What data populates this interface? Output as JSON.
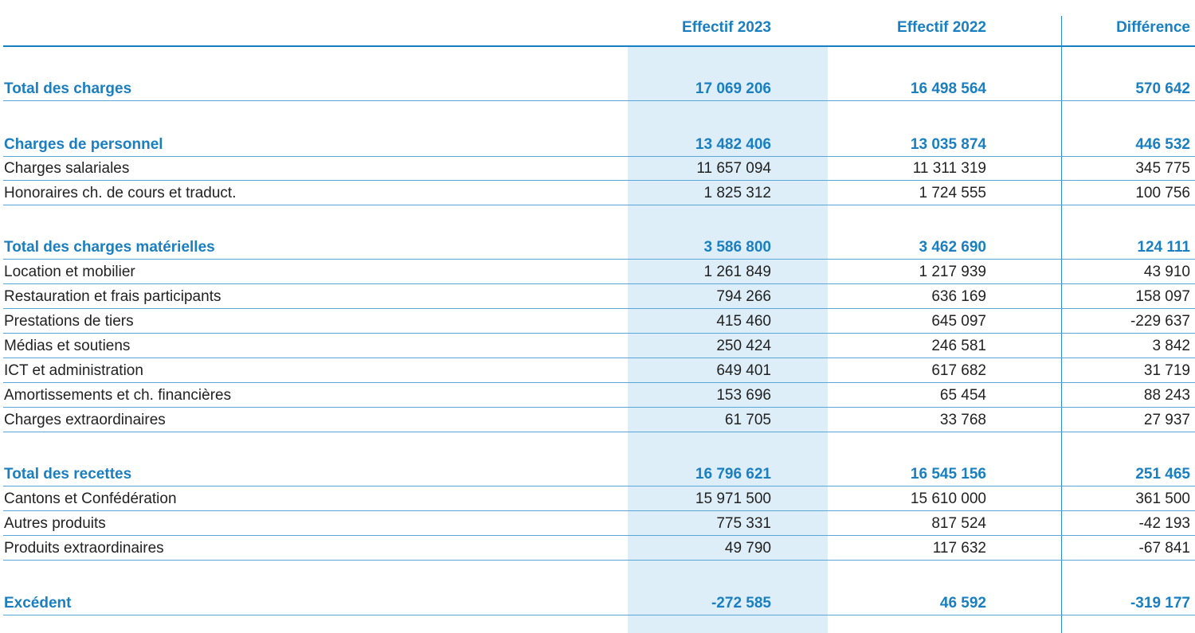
{
  "columns": {
    "col_2023": "Effectif  2023",
    "col_2022": "Effectif  2022",
    "col_diff": "Différence"
  },
  "rows": [
    {
      "label": "Total des charges",
      "v2023": "17 069 206",
      "v2022": "16 498 564",
      "diff": "570 642",
      "bold": true
    },
    {
      "label": "Charges de personnel",
      "v2023": "13 482 406",
      "v2022": "13 035 874",
      "diff": "446 532",
      "bold": true
    },
    {
      "label": "Charges salariales",
      "v2023": "11 657 094",
      "v2022": "11 311 319",
      "diff": "345 775",
      "bold": false
    },
    {
      "label": "Honoraires ch. de cours et traduct.",
      "v2023": "1 825 312",
      "v2022": "1 724 555",
      "diff": "100 756",
      "bold": false
    },
    {
      "label": "Total des charges matérielles",
      "v2023": "3 586 800",
      "v2022": "3 462 690",
      "diff": "124 111",
      "bold": true
    },
    {
      "label": "Location et mobilier",
      "v2023": "1 261 849",
      "v2022": "1 217 939",
      "diff": "43 910",
      "bold": false
    },
    {
      "label": "Restauration et frais participants",
      "v2023": "794 266",
      "v2022": "636 169",
      "diff": "158 097",
      "bold": false
    },
    {
      "label": "Prestations de tiers",
      "v2023": "415 460",
      "v2022": "645 097",
      "diff": "-229 637",
      "bold": false
    },
    {
      "label": "Médias et soutiens",
      "v2023": "250 424",
      "v2022": "246 581",
      "diff": "3 842",
      "bold": false
    },
    {
      "label": "ICT et administration",
      "v2023": "649 401",
      "v2022": "617 682",
      "diff": "31 719",
      "bold": false
    },
    {
      "label": "Amortissements et ch. financières",
      "v2023": "153 696",
      "v2022": "65 454",
      "diff": "88 243",
      "bold": false
    },
    {
      "label": "Charges extraordinaires",
      "v2023": "61 705",
      "v2022": "33 768",
      "diff": "27 937",
      "bold": false
    },
    {
      "label": "Total des recettes",
      "v2023": "16 796 621",
      "v2022": "16 545 156",
      "diff": "251 465",
      "bold": true
    },
    {
      "label": "Cantons et Confédération",
      "v2023": "15 971 500",
      "v2022": "15 610 000",
      "diff": "361 500",
      "bold": false
    },
    {
      "label": "Autres produits",
      "v2023": "775 331",
      "v2022": "817 524",
      "diff": "-42 193",
      "bold": false
    },
    {
      "label": "Produits extraordinaires",
      "v2023": "49 790",
      "v2022": "117 632",
      "diff": "-67 841",
      "bold": false
    },
    {
      "label": "Excédent",
      "v2023": "-272 585",
      "v2022": "46 592",
      "diff": "-319 177",
      "bold": true
    }
  ]
}
